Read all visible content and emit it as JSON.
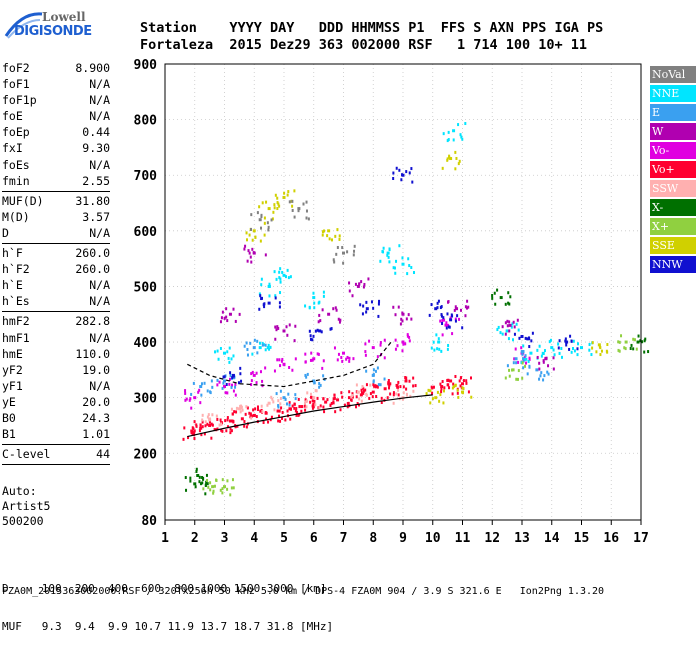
{
  "logo": {
    "line1": "Lowell",
    "line2": "DIGISONDE"
  },
  "header": {
    "labels": "Station    YYYY DAY   DDD HHMMSS P1  FFS S AXN PPS IGA PS",
    "values": "Fortaleza  2015 Dez29 363 002000 RSF   1 714 100 10+ 11"
  },
  "params": [
    {
      "label": "foF2",
      "value": "8.900"
    },
    {
      "label": "foF1",
      "value": "N/A"
    },
    {
      "label": "foF1p",
      "value": "N/A"
    },
    {
      "label": "foE",
      "value": "N/A"
    },
    {
      "label": "foEp",
      "value": "0.44"
    },
    {
      "label": "fxI",
      "value": "9.30"
    },
    {
      "label": "foEs",
      "value": "N/A"
    },
    {
      "label": "fmin",
      "value": "2.55"
    },
    {
      "sep": true
    },
    {
      "label": "MUF(D)",
      "value": "31.80"
    },
    {
      "label": "M(D)",
      "value": "3.57"
    },
    {
      "label": "D",
      "value": "N/A"
    },
    {
      "sep": true
    },
    {
      "label": "h`F",
      "value": "260.0"
    },
    {
      "label": "h`F2",
      "value": "260.0"
    },
    {
      "label": "h`E",
      "value": "N/A"
    },
    {
      "label": "h`Es",
      "value": "N/A"
    },
    {
      "sep": true
    },
    {
      "label": "hmF2",
      "value": "282.8"
    },
    {
      "label": "hmF1",
      "value": "N/A"
    },
    {
      "label": "hmE",
      "value": "110.0"
    },
    {
      "label": "yF2",
      "value": "19.0"
    },
    {
      "label": "yF1",
      "value": "N/A"
    },
    {
      "label": "yE",
      "value": "20.0"
    },
    {
      "label": "B0",
      "value": "24.3"
    },
    {
      "label": "B1",
      "value": "1.01"
    },
    {
      "sep": true
    },
    {
      "label": "C-level",
      "value": "44"
    },
    {
      "sep": true
    }
  ],
  "auto": {
    "line1": "Auto:",
    "line2": "Artist5",
    "line3": "500200"
  },
  "legend": [
    {
      "name": "NoVal",
      "color": "#808080"
    },
    {
      "name": "NNE",
      "color": "#00e5ff"
    },
    {
      "name": "E",
      "color": "#3aa0f0"
    },
    {
      "name": "W",
      "color": "#b000b0"
    },
    {
      "name": "Vo-",
      "color": "#e000e0"
    },
    {
      "name": "Vo+",
      "color": "#ff0030"
    },
    {
      "name": "SSW",
      "color": "#ffb0b0"
    },
    {
      "name": "X-",
      "color": "#007000"
    },
    {
      "name": "X+",
      "color": "#90d040"
    },
    {
      "name": "SSE",
      "color": "#d0d000"
    },
    {
      "name": "NNW",
      "color": "#1010d0"
    }
  ],
  "footer": {
    "line1": "D     100  200  400  600  800 1000 1500 3000 [km]",
    "line2": "MUF   9.3  9.4  9.9 10.7 11.9 13.7 18.7 31.8 [MHz]",
    "file": "FZA0M_2015363002000.RSF / 320fx256h 50 kHz 5.0 km / DPS-4 FZA0M 904 / 3.9 S 321.6 E   Ion2Png 1.3.20"
  },
  "chart_data": {
    "type": "scatter",
    "title": "",
    "xlabel": "",
    "ylabel": "",
    "xlim": [
      1,
      17
    ],
    "ylim": [
      80,
      900
    ],
    "x_ticks": [
      1,
      2,
      3,
      4,
      5,
      6,
      7,
      8,
      9,
      10,
      11,
      12,
      13,
      14,
      15,
      16,
      17
    ],
    "y_ticks": [
      80,
      200,
      300,
      400,
      500,
      600,
      700,
      800,
      900
    ],
    "grid": true,
    "series": [
      {
        "name": "Vo+",
        "color": "#ff0030",
        "points": [
          [
            1.9,
            240
          ],
          [
            2.2,
            245
          ],
          [
            2.5,
            250
          ],
          [
            2.9,
            255
          ],
          [
            3.2,
            258
          ],
          [
            3.6,
            262
          ],
          [
            4.0,
            268
          ],
          [
            4.4,
            272
          ],
          [
            4.8,
            276
          ],
          [
            5.2,
            280
          ],
          [
            5.6,
            284
          ],
          [
            6.0,
            288
          ],
          [
            6.4,
            292
          ],
          [
            6.8,
            296
          ],
          [
            7.2,
            300
          ],
          [
            7.6,
            305
          ],
          [
            8.0,
            310
          ],
          [
            8.4,
            316
          ],
          [
            8.8,
            322
          ],
          [
            9.1,
            330
          ],
          [
            10.3,
            320
          ],
          [
            10.6,
            330
          ],
          [
            11.0,
            325
          ]
        ]
      },
      {
        "name": "Vo-",
        "color": "#e000e0",
        "points": [
          [
            2.0,
            300
          ],
          [
            3.0,
            320
          ],
          [
            4.0,
            340
          ],
          [
            5.0,
            360
          ],
          [
            6.0,
            370
          ],
          [
            7.0,
            380
          ],
          [
            8.0,
            390
          ],
          [
            9.0,
            400
          ],
          [
            10.5,
            430
          ],
          [
            13.0,
            380
          ]
        ]
      },
      {
        "name": "NNE",
        "color": "#00e5ff",
        "points": [
          [
            3.0,
            380
          ],
          [
            4.2,
            390
          ],
          [
            4.5,
            500
          ],
          [
            5.0,
            520
          ],
          [
            6.0,
            480
          ],
          [
            8.5,
            560
          ],
          [
            9.0,
            540
          ],
          [
            10.2,
            400
          ],
          [
            10.7,
            780
          ],
          [
            12.5,
            420
          ],
          [
            13.3,
            380
          ],
          [
            14.0,
            390
          ],
          [
            15.0,
            390
          ]
        ]
      },
      {
        "name": "E",
        "color": "#3aa0f0",
        "points": [
          [
            2.2,
            320
          ],
          [
            3.0,
            330
          ],
          [
            4.0,
            390
          ],
          [
            5.0,
            300
          ],
          [
            6.0,
            330
          ],
          [
            8.0,
            340
          ],
          [
            12.8,
            370
          ],
          [
            13.5,
            350
          ]
        ]
      },
      {
        "name": "W",
        "color": "#b000b0",
        "points": [
          [
            3.2,
            450
          ],
          [
            4.0,
            560
          ],
          [
            5.0,
            420
          ],
          [
            6.5,
            450
          ],
          [
            7.5,
            500
          ],
          [
            9.0,
            450
          ],
          [
            10.8,
            460
          ],
          [
            12.6,
            430
          ],
          [
            13.8,
            370
          ]
        ]
      },
      {
        "name": "SSW",
        "color": "#ffb0b0",
        "points": [
          [
            2.5,
            260
          ],
          [
            3.5,
            280
          ],
          [
            4.5,
            290
          ],
          [
            6.0,
            300
          ],
          [
            7.5,
            310
          ],
          [
            9.0,
            300
          ]
        ]
      },
      {
        "name": "X-",
        "color": "#007000",
        "points": [
          [
            2.0,
            145
          ],
          [
            2.1,
            160
          ],
          [
            12.3,
            480
          ],
          [
            16.9,
            400
          ]
        ]
      },
      {
        "name": "X+",
        "color": "#90d040",
        "points": [
          [
            2.6,
            140
          ],
          [
            3.0,
            140
          ],
          [
            12.7,
            350
          ],
          [
            16.5,
            400
          ]
        ]
      },
      {
        "name": "SSE",
        "color": "#d0d000",
        "points": [
          [
            4.0,
            600
          ],
          [
            4.5,
            640
          ],
          [
            5.0,
            660
          ],
          [
            6.5,
            600
          ],
          [
            10.1,
            300
          ],
          [
            10.6,
            730
          ],
          [
            11.0,
            310
          ],
          [
            15.6,
            395
          ]
        ]
      },
      {
        "name": "NNW",
        "color": "#1010d0",
        "points": [
          [
            3.3,
            340
          ],
          [
            4.5,
            470
          ],
          [
            6.2,
            420
          ],
          [
            7.8,
            460
          ],
          [
            9.0,
            700
          ],
          [
            10.1,
            460
          ],
          [
            10.6,
            440
          ],
          [
            13.0,
            410
          ],
          [
            14.5,
            400
          ]
        ]
      },
      {
        "name": "NoVal",
        "color": "#808080",
        "points": [
          [
            4.2,
            620
          ],
          [
            5.5,
            640
          ],
          [
            7.0,
            560
          ]
        ]
      }
    ],
    "profile_line": [
      [
        1.75,
        230
      ],
      [
        3,
        245
      ],
      [
        4,
        256
      ],
      [
        5,
        266
      ],
      [
        6,
        276
      ],
      [
        7,
        284
      ],
      [
        8,
        292
      ],
      [
        9.1,
        300
      ],
      [
        10,
        305
      ]
    ],
    "trace_line": [
      [
        1.75,
        360
      ],
      [
        2.5,
        340
      ],
      [
        3.5,
        325
      ],
      [
        5,
        320
      ],
      [
        7,
        340
      ],
      [
        8,
        360
      ],
      [
        8.6,
        400
      ]
    ]
  }
}
